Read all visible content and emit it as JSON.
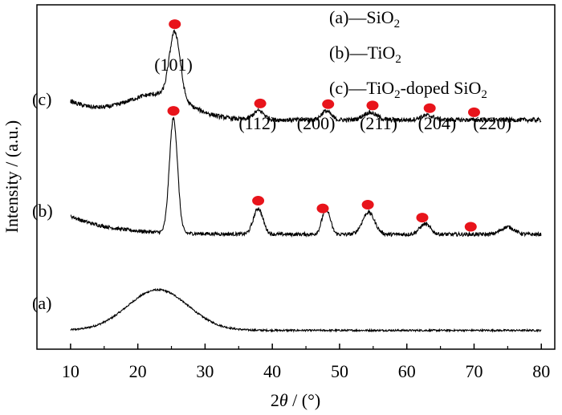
{
  "chart_data": {
    "type": "line",
    "xlabel_prefix": "2",
    "xlabel_symbol": "θ",
    "xlabel_suffix": " / (°)",
    "ylabel": "Intensity / (a.u.)",
    "xlim": [
      5,
      82
    ],
    "x_ticks": [
      10,
      20,
      30,
      40,
      50,
      60,
      70,
      80
    ],
    "y_ticks_shown": false,
    "grid": false,
    "legend_position": "top-right",
    "legend": [
      {
        "prefix": "(a)—SiO",
        "sub": "2",
        "suffix": ""
      },
      {
        "prefix": "(b)—TiO",
        "sub": "2",
        "suffix": ""
      },
      {
        "prefix": "(c)—TiO",
        "sub": "2",
        "suffix": "-doped SiO",
        "sub2": "2"
      }
    ],
    "marker_color": "#e8141b",
    "line_color": "#000000",
    "series": [
      {
        "name": "(a)",
        "label": "(a)",
        "baseline": 0.2,
        "noise": 0.012,
        "peaks": [
          {
            "x": 23,
            "height": 0.55,
            "width": 4.5
          }
        ],
        "tail": 0.0,
        "markers": []
      },
      {
        "name": "(b)",
        "label": "(b)",
        "baseline": 1.5,
        "noise": 0.025,
        "peaks": [
          {
            "x": 25.3,
            "height": 1.55,
            "width": 0.6
          },
          {
            "x": 37.9,
            "height": 0.35,
            "width": 0.7
          },
          {
            "x": 48.0,
            "height": 0.35,
            "width": 0.6
          },
          {
            "x": 54.3,
            "height": 0.3,
            "width": 0.9
          },
          {
            "x": 62.7,
            "height": 0.14,
            "width": 0.8
          },
          {
            "x": 75.0,
            "height": 0.1,
            "width": 1.0
          }
        ],
        "tail": 0.25,
        "markers": [
          25.3,
          37.9,
          47.5,
          54.2,
          62.3,
          69.5
        ]
      },
      {
        "name": "(c)",
        "label": "(c)",
        "baseline": 3.05,
        "noise": 0.03,
        "peaks": [
          {
            "x": 23,
            "height": 0.32,
            "width": 4.5
          },
          {
            "x": 25.5,
            "height": 0.9,
            "width": 0.8
          },
          {
            "x": 38.0,
            "height": 0.12,
            "width": 0.8
          },
          {
            "x": 48.0,
            "height": 0.12,
            "width": 0.7
          },
          {
            "x": 54.5,
            "height": 0.1,
            "width": 1.0
          },
          {
            "x": 63.0,
            "height": 0.06,
            "width": 1.0
          }
        ],
        "tail": 0.25,
        "markers": [
          25.5,
          38.2,
          48.3,
          54.9,
          63.4,
          70.0
        ]
      }
    ],
    "peak_labels": [
      {
        "x": 25.3,
        "text": "(101)"
      },
      {
        "x": 37.8,
        "text": "(112)"
      },
      {
        "x": 46.5,
        "text": "(200)"
      },
      {
        "x": 55.8,
        "text": "(211)"
      },
      {
        "x": 64.5,
        "text": "(204)"
      },
      {
        "x": 72.7,
        "text": "(220)"
      }
    ]
  }
}
